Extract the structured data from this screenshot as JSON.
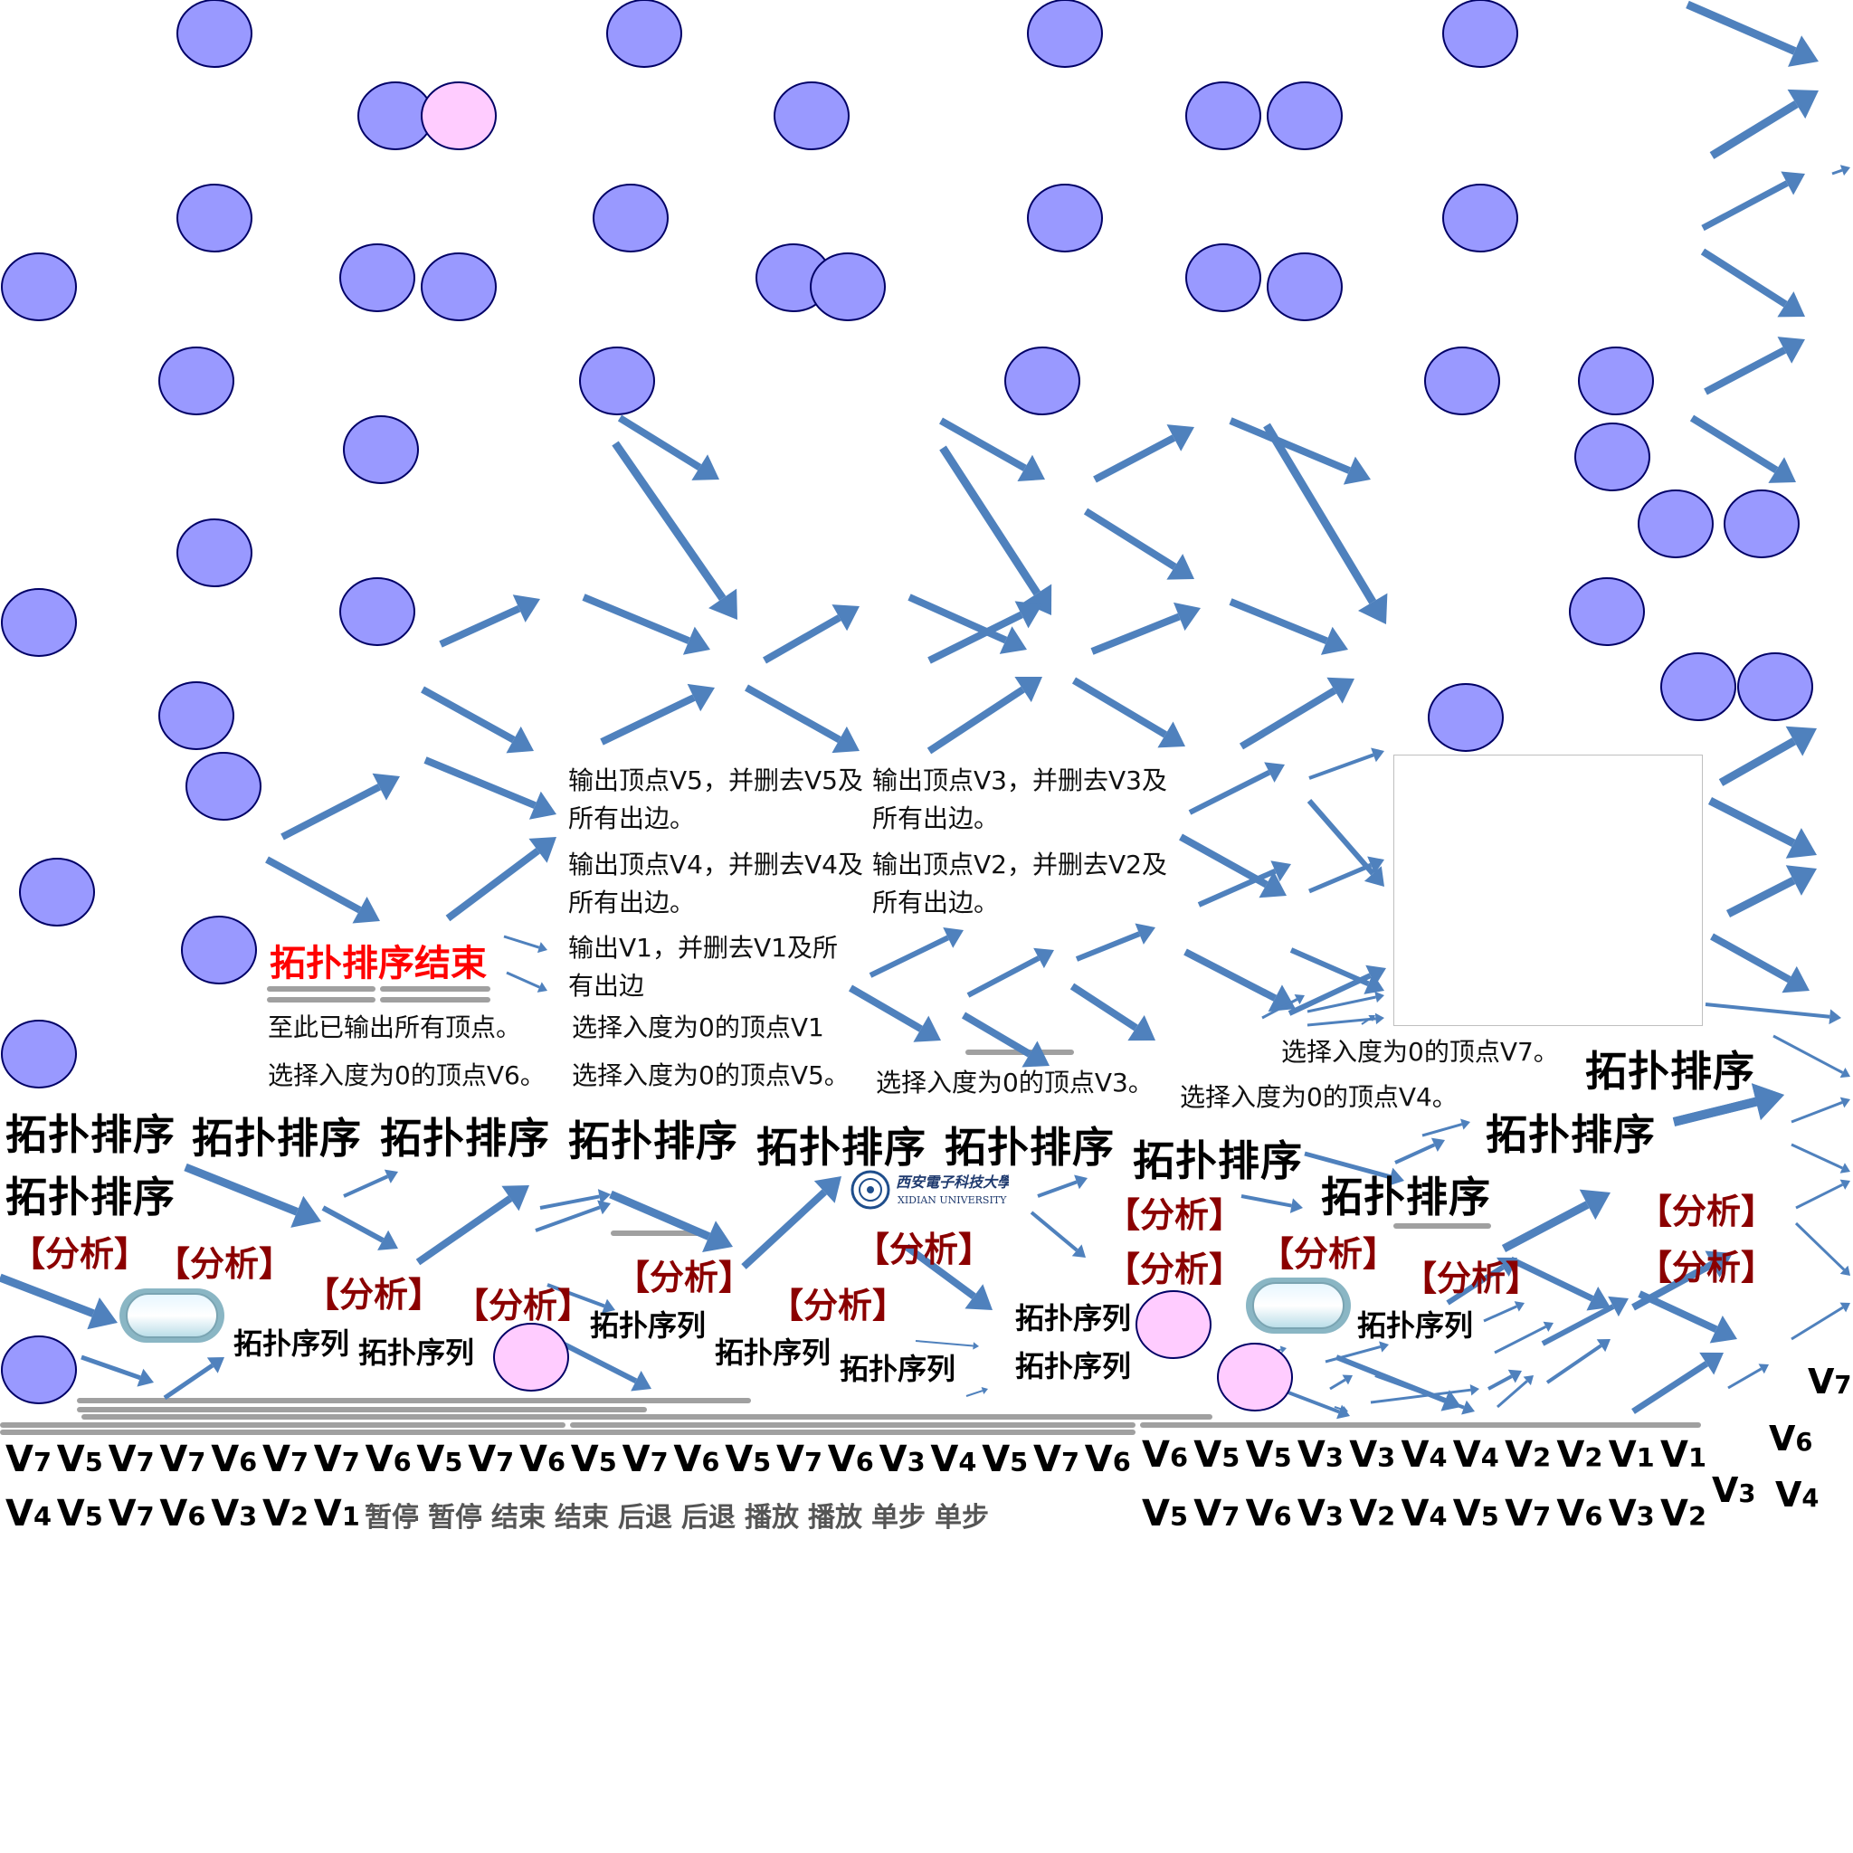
{
  "colors": {
    "node_fill": "#9999ff",
    "node_highlight_fill": "#ffccff",
    "node_stroke": "#000066",
    "arrow": "#4f81bd",
    "title_red": "#ff0000",
    "analysis_text": "#8b0000",
    "bar": "#a0a0a0",
    "control_text": "#555555"
  },
  "headings": {
    "topo_sort": "拓扑排序",
    "topo_sort_end": "拓扑排序结束",
    "analysis": "【分析】",
    "sequence": "拓扑序列"
  },
  "notes": {
    "output_v5": "输出顶点V5，并删去V5及所有出边。",
    "output_v4": "输出顶点V4，并删去V4及所有出边。",
    "output_v1": "输出V1，并删去V1及所有出边",
    "output_v3": "输出顶点V3，并删去V3及所有出边。",
    "output_v2": "输出顶点V2，并删去V2及所有出边。",
    "all_output": "至此已输出所有顶点。",
    "select_v6": "选择入度为0的顶点V6。",
    "select_v1": "选择入度为0的顶点V1",
    "select_v5": "选择入度为0的顶点V5。",
    "select_v3": "选择入度为0的顶点V3。",
    "select_v7": "选择入度为0的顶点V7。",
    "select_v4": "选择入度为0的顶点V4。"
  },
  "vertex_row1": [
    "V7",
    "V5",
    "V7",
    "V7",
    "V6",
    "V7",
    "V7",
    "V6",
    "V5",
    "V7",
    "V6",
    "V5",
    "V7",
    "V6",
    "V5",
    "V7",
    "V6",
    "V3",
    "V4",
    "V5",
    "V7",
    "V6",
    "V6",
    "V5",
    "V5",
    "V3",
    "V3",
    "V4",
    "V4",
    "V2",
    "V2",
    "V1",
    "V1"
  ],
  "vertex_row2": [
    "V4",
    "V5",
    "V7",
    "V6",
    "V3",
    "V2",
    "V1"
  ],
  "vertex_row2_right": [
    "V5",
    "V7",
    "V6",
    "V3",
    "V2",
    "V4",
    "V5",
    "V7",
    "V6",
    "V3",
    "V2"
  ],
  "controls": [
    "暂停",
    "暂停",
    "结束",
    "结束",
    "后退",
    "后退",
    "播放",
    "播放",
    "单步",
    "单步"
  ],
  "right_column": [
    "V7",
    "V6",
    "V3",
    "V4"
  ],
  "logo": {
    "text": "西安电子科技大学",
    "subtext": "XIDIAN UNIVERSITY"
  }
}
